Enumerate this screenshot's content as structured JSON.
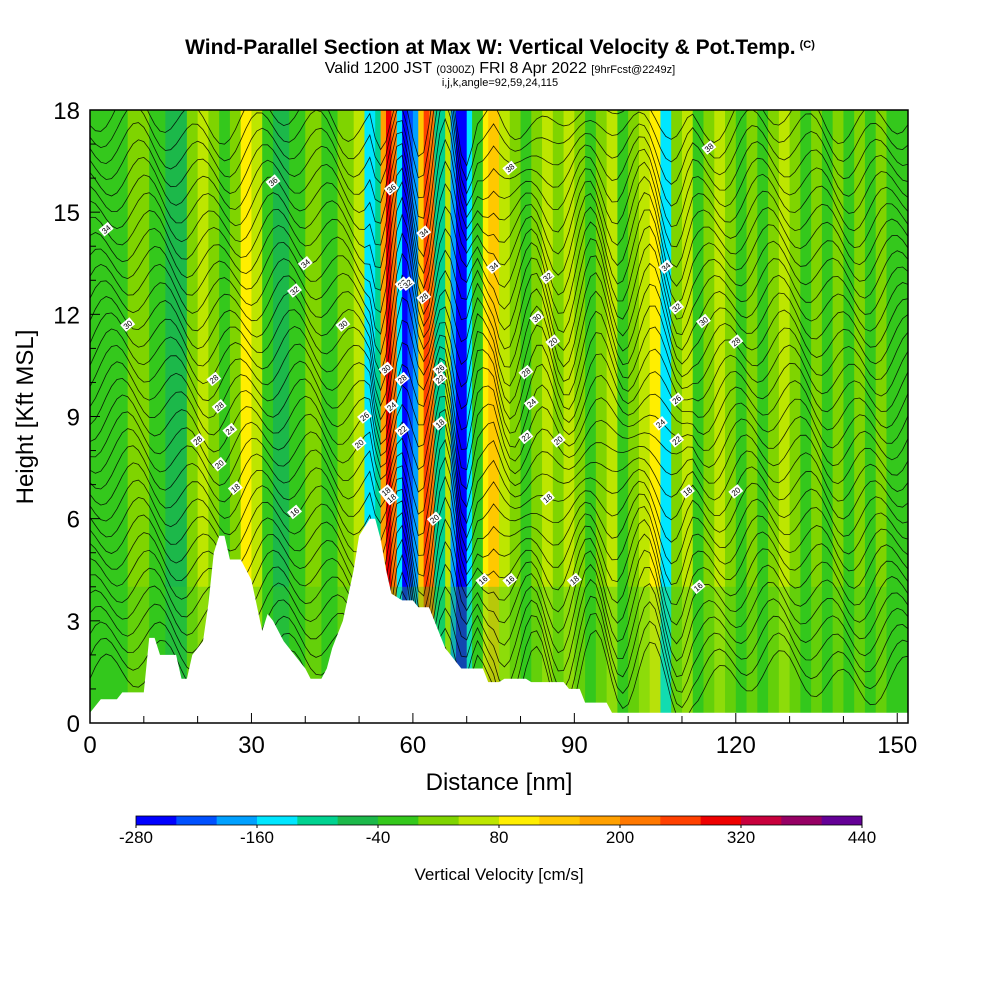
{
  "header": {
    "title": "Wind-Parallel Section at Max W: Vertical Velocity & Pot.Temp.",
    "copyright": "(C)",
    "subtitle_valid": "Valid 1200 JST",
    "subtitle_zulu": "(0300Z)",
    "subtitle_date": "FRI 8 Apr 2022",
    "subtitle_fcst": "[9hrFcst@2249z]",
    "subtitle2": "i,j,k,angle=92,59,24,115"
  },
  "chart_data": {
    "type": "heatmap",
    "xlabel": "Distance [nm]",
    "ylabel": "Height [Kft MSL]",
    "xlim": [
      0,
      152
    ],
    "ylim": [
      0,
      18
    ],
    "xticks": [
      0,
      30,
      60,
      90,
      120,
      150
    ],
    "yticks": [
      0,
      3,
      6,
      9,
      12,
      15,
      18
    ],
    "colorbar": {
      "label": "Vertical Velocity [cm/s]",
      "tick_labels": [
        "-280",
        "-160",
        "-40",
        "80",
        "200",
        "320",
        "440"
      ],
      "colors": [
        "#0000ff",
        "#0050ff",
        "#00a0ff",
        "#00e6ff",
        "#00d290",
        "#1cb84a",
        "#34c81c",
        "#7fd400",
        "#bde600",
        "#ffee00",
        "#ffc800",
        "#ffa000",
        "#ff7800",
        "#ff4000",
        "#ee0000",
        "#c8003c",
        "#960064",
        "#640096"
      ]
    },
    "terrain": [
      [
        0,
        0.3
      ],
      [
        2,
        0.7
      ],
      [
        5,
        0.7
      ],
      [
        6,
        0.9
      ],
      [
        10,
        0.9
      ],
      [
        11,
        2.5
      ],
      [
        12,
        2.5
      ],
      [
        13,
        2.0
      ],
      [
        16,
        2.0
      ],
      [
        17,
        1.3
      ],
      [
        18,
        1.3
      ],
      [
        19,
        2.0
      ],
      [
        21,
        2.4
      ],
      [
        22,
        3.5
      ],
      [
        23,
        5.0
      ],
      [
        24,
        5.5
      ],
      [
        25,
        5.5
      ],
      [
        26,
        4.8
      ],
      [
        28,
        4.8
      ],
      [
        29,
        4.5
      ],
      [
        30,
        4.2
      ],
      [
        32,
        2.7
      ],
      [
        33,
        3.2
      ],
      [
        34,
        3.0
      ],
      [
        36,
        2.4
      ],
      [
        38,
        2.0
      ],
      [
        40,
        1.6
      ],
      [
        41,
        1.3
      ],
      [
        43,
        1.3
      ],
      [
        44,
        1.6
      ],
      [
        45,
        2.2
      ],
      [
        47,
        3.0
      ],
      [
        49,
        4.5
      ],
      [
        50,
        5.5
      ],
      [
        52,
        6.0
      ],
      [
        53,
        6.0
      ],
      [
        54,
        5.4
      ],
      [
        55,
        4.5
      ],
      [
        56,
        3.8
      ],
      [
        58,
        3.6
      ],
      [
        60,
        3.6
      ],
      [
        61,
        3.4
      ],
      [
        63,
        3.4
      ],
      [
        64,
        3.0
      ],
      [
        65,
        2.6
      ],
      [
        66,
        2.2
      ],
      [
        67,
        2.0
      ],
      [
        68,
        1.8
      ],
      [
        69,
        1.6
      ],
      [
        73,
        1.6
      ],
      [
        74,
        1.2
      ],
      [
        76,
        1.2
      ],
      [
        77,
        1.3
      ],
      [
        81,
        1.3
      ],
      [
        82,
        1.2
      ],
      [
        88,
        1.2
      ],
      [
        89,
        1.0
      ],
      [
        91,
        1.0
      ],
      [
        92,
        0.6
      ],
      [
        96,
        0.6
      ],
      [
        97,
        0.3
      ],
      [
        152,
        0.3
      ]
    ],
    "theta_contour_labels": [
      "34",
      "36",
      "34",
      "32",
      "30",
      "28",
      "28",
      "28",
      "24",
      "20",
      "18",
      "16",
      "30",
      "26",
      "20",
      "18",
      "36",
      "32",
      "30",
      "28",
      "24",
      "22",
      "18",
      "34",
      "32",
      "28",
      "26",
      "22",
      "18",
      "20",
      "38",
      "34",
      "32",
      "30",
      "28",
      "24",
      "22",
      "20",
      "18",
      "16",
      "16",
      "18",
      "38",
      "34",
      "32",
      "30",
      "28",
      "26",
      "24",
      "22",
      "18",
      "16",
      "20",
      "20"
    ]
  }
}
